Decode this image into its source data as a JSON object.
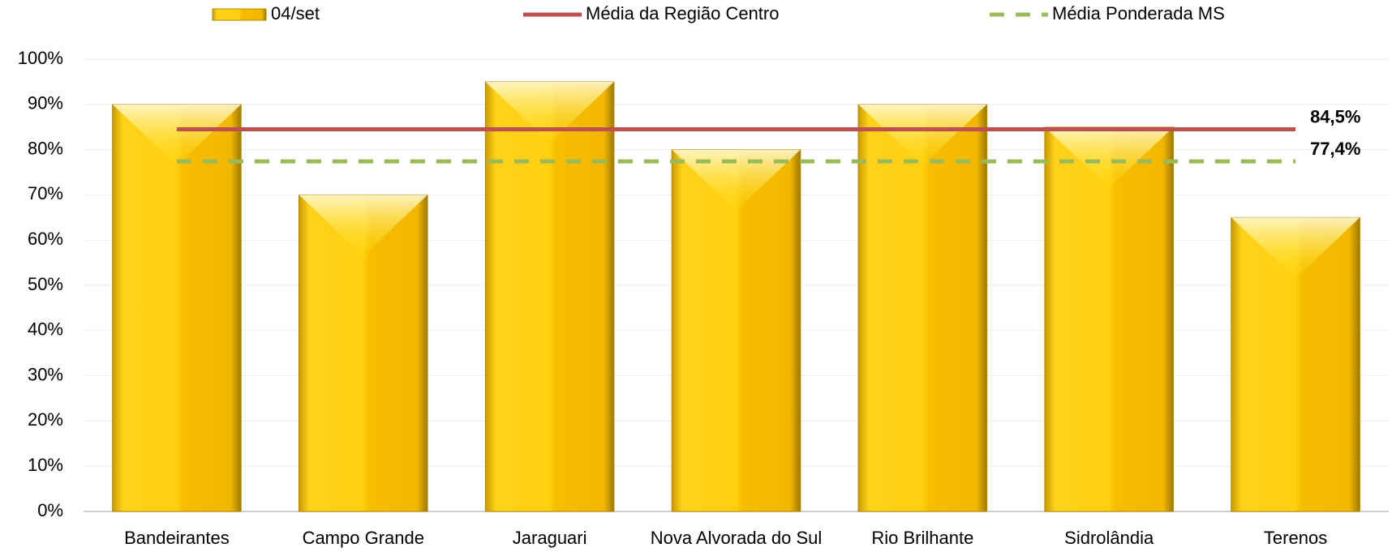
{
  "chart_data": {
    "type": "bar",
    "categories": [
      "Bandeirantes",
      "Campo Grande",
      "Jaraguari",
      "Nova Alvorada do Sul",
      "Rio Brilhante",
      "Sidrolândia",
      "Terenos"
    ],
    "series": [
      {
        "name": "04/set",
        "type": "bar",
        "color": "#f5c000",
        "values": [
          90,
          70,
          95,
          80,
          90,
          85,
          65
        ]
      },
      {
        "name": "Média da Região Centro",
        "type": "line",
        "color": "#c0504d",
        "dashed": false,
        "values": [
          84.5,
          84.5,
          84.5,
          84.5,
          84.5,
          84.5,
          84.5
        ],
        "value_labels": [
          null,
          null,
          null,
          null,
          null,
          null,
          "84,5%"
        ]
      },
      {
        "name": "Média Ponderada MS",
        "type": "line",
        "color": "#9bbb59",
        "dashed": true,
        "values": [
          77.4,
          77.4,
          77.4,
          77.4,
          77.4,
          77.4,
          77.4
        ],
        "value_labels": [
          null,
          null,
          null,
          null,
          null,
          null,
          "77,4%"
        ]
      }
    ],
    "ylim": [
      0,
      100
    ],
    "yticks": [
      {
        "value": 0,
        "label": "0%"
      },
      {
        "value": 10,
        "label": "10%"
      },
      {
        "value": 20,
        "label": "20%"
      },
      {
        "value": 30,
        "label": "30%"
      },
      {
        "value": 40,
        "label": "40%"
      },
      {
        "value": 50,
        "label": "50%"
      },
      {
        "value": 60,
        "label": "60%"
      },
      {
        "value": 70,
        "label": "70%"
      },
      {
        "value": 80,
        "label": "80%"
      },
      {
        "value": 90,
        "label": "90%"
      },
      {
        "value": 100,
        "label": "100%"
      }
    ],
    "grid": true
  }
}
